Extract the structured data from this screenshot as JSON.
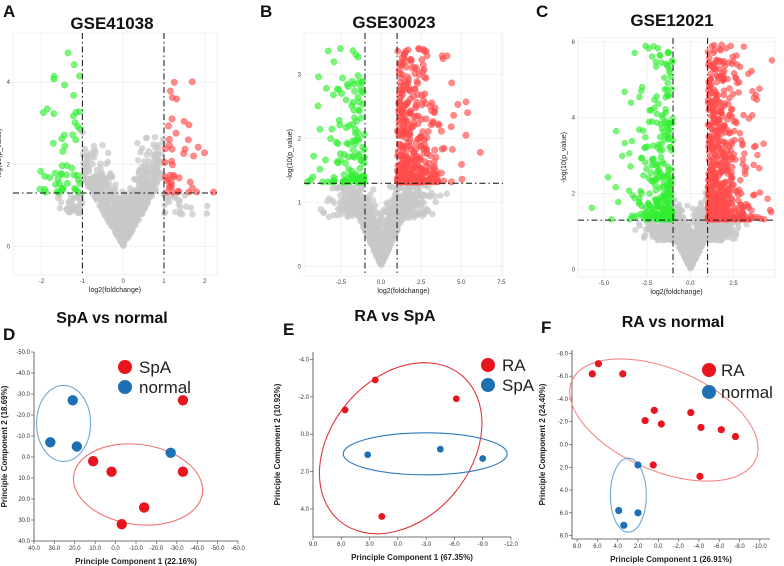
{
  "chart_data": [
    {
      "type": "scatter",
      "panel": "A",
      "title": "GSE41038",
      "xlabel": "log2(foldchange)",
      "ylabel": "-log(10(p_value)",
      "xlim": [
        -2.7,
        2.3
      ],
      "ylim": [
        -0.7,
        5.2
      ],
      "x_ticks": [
        -2,
        -1,
        0,
        1,
        2
      ],
      "y_ticks": [
        0,
        2,
        4
      ],
      "fc_cutoff": 1,
      "p_cutoff": 1.3,
      "grid": true,
      "series": [
        {
          "name": "up",
          "color": "#ff4d4d",
          "count": 45
        },
        {
          "name": "down",
          "color": "#33ee33",
          "count": 55
        },
        {
          "name": "not significant",
          "color": "#c8c8c8",
          "count": 900
        }
      ]
    },
    {
      "type": "scatter",
      "panel": "B",
      "title": "GSE30023",
      "xlabel": "log2(foldchange)",
      "ylabel": "-log(10(p_value)",
      "xlim": [
        -4.8,
        7.6
      ],
      "ylim": [
        -0.15,
        3.65
      ],
      "x_ticks": [
        -2.5,
        0.0,
        2.5,
        5.0,
        7.5
      ],
      "y_ticks": [
        0,
        1,
        2,
        3
      ],
      "fc_cutoff": 1,
      "p_cutoff": 1.3,
      "grid": true,
      "series": [
        {
          "name": "up",
          "color": "#ff4d4d",
          "count": 420
        },
        {
          "name": "down",
          "color": "#33ee33",
          "count": 130
        },
        {
          "name": "not significant",
          "color": "#c8c8c8",
          "count": 1100
        }
      ]
    },
    {
      "type": "scatter",
      "panel": "C",
      "title": "GSE12021",
      "xlabel": "log2(foldchange)",
      "ylabel": "-log(10(p_value)",
      "xlim": [
        -6.5,
        4.9
      ],
      "ylim": [
        -0.2,
        6.1
      ],
      "x_ticks": [
        -5.0,
        -2.5,
        0.0,
        2.5
      ],
      "y_ticks": [
        0,
        2,
        4,
        6
      ],
      "fc_cutoff": 1,
      "p_cutoff": 1.3,
      "grid": true,
      "series": [
        {
          "name": "up",
          "color": "#ff4d4d",
          "count": 650
        },
        {
          "name": "down",
          "color": "#33ee33",
          "count": 280
        },
        {
          "name": "not significant",
          "color": "#c8c8c8",
          "count": 1200
        }
      ]
    },
    {
      "type": "scatter",
      "panel": "D",
      "title": "SpA vs normal",
      "xlabel": "Principle Component 1 (22.16%)",
      "ylabel": "Principle Component 2 (18.69%)",
      "xlim": [
        40,
        -60
      ],
      "ylim": [
        -50,
        40
      ],
      "x_ticks": [
        40.0,
        30.0,
        20.0,
        10.0,
        0.0,
        -10.0,
        -20.0,
        -30.0,
        -40.0,
        -50.0,
        -60.0
      ],
      "y_ticks": [
        -50.0,
        -40.0,
        -30.0,
        -20.0,
        -10.0,
        0.0,
        10.0,
        20.0,
        30.0,
        40.0
      ],
      "legend": [
        "SpA",
        "normal"
      ],
      "series": [
        {
          "name": "SpA",
          "color": "#e8141e",
          "points": [
            [
              -33,
              -27
            ],
            [
              11,
              2
            ],
            [
              2,
              7
            ],
            [
              -33,
              7
            ],
            [
              -14,
              24
            ],
            [
              -3,
              32
            ]
          ]
        },
        {
          "name": "normal",
          "color": "#1f6fb4",
          "points": [
            [
              21,
              -27
            ],
            [
              32,
              -7
            ],
            [
              19,
              -5
            ],
            [
              -27,
              -2
            ]
          ]
        }
      ]
    },
    {
      "type": "scatter",
      "panel": "E",
      "title": "RA vs SpA",
      "xlabel": "Principle Component 1 (67.35%)",
      "ylabel": "Principle Component 2 (10.92%)",
      "xlim": [
        9,
        -12
      ],
      "ylim": [
        -4.4,
        5.5
      ],
      "x_ticks": [
        9.0,
        6.0,
        3.0,
        0.0,
        -3.0,
        -6.0,
        -9.0,
        -12.0
      ],
      "y_ticks": [
        -4.0,
        -2.0,
        0.0,
        2.0,
        4.0
      ],
      "legend": [
        "RA",
        "SpA"
      ],
      "series": [
        {
          "name": "RA",
          "color": "#e8141e",
          "points": [
            [
              5.6,
              -1.3
            ],
            [
              2.4,
              -2.9
            ],
            [
              -6.2,
              -1.9
            ],
            [
              1.7,
              4.4
            ]
          ]
        },
        {
          "name": "SpA",
          "color": "#1f6fb4",
          "points": [
            [
              3.2,
              1.1
            ],
            [
              -4.5,
              0.8
            ],
            [
              -9.0,
              1.3
            ]
          ]
        }
      ]
    },
    {
      "type": "scatter",
      "panel": "F",
      "title": "RA vs normal",
      "xlabel": "Principle Component 1 (26.91%)",
      "ylabel": "Principle Component 2 (24.40%)",
      "xlim": [
        8.5,
        -11
      ],
      "ylim": [
        -8.3,
        8.3
      ],
      "x_ticks": [
        8.0,
        6.0,
        4.0,
        2.0,
        0.0,
        -2.0,
        -4.0,
        -6.0,
        -8.0,
        -10.0
      ],
      "y_ticks": [
        -8.0,
        -6.0,
        -4.0,
        -2.0,
        0.0,
        2.0,
        4.0,
        6.0,
        8.0
      ],
      "legend": [
        "RA",
        "normal"
      ],
      "series": [
        {
          "name": "RA",
          "color": "#e8141e",
          "points": [
            [
              5.9,
              -7.1
            ],
            [
              6.5,
              -6.2
            ],
            [
              3.5,
              -6.2
            ],
            [
              0.4,
              -3.0
            ],
            [
              -3.2,
              -2.8
            ],
            [
              1.3,
              -2.1
            ],
            [
              -0.3,
              -1.8
            ],
            [
              -4.2,
              -1.5
            ],
            [
              -6.2,
              -1.3
            ],
            [
              -7.6,
              -0.7
            ],
            [
              0.5,
              1.8
            ],
            [
              -4.1,
              2.8
            ]
          ]
        },
        {
          "name": "normal",
          "color": "#1f6fb4",
          "points": [
            [
              2.0,
              1.8
            ],
            [
              3.9,
              5.8
            ],
            [
              2.0,
              6.0
            ],
            [
              3.4,
              7.1
            ]
          ]
        }
      ]
    }
  ]
}
